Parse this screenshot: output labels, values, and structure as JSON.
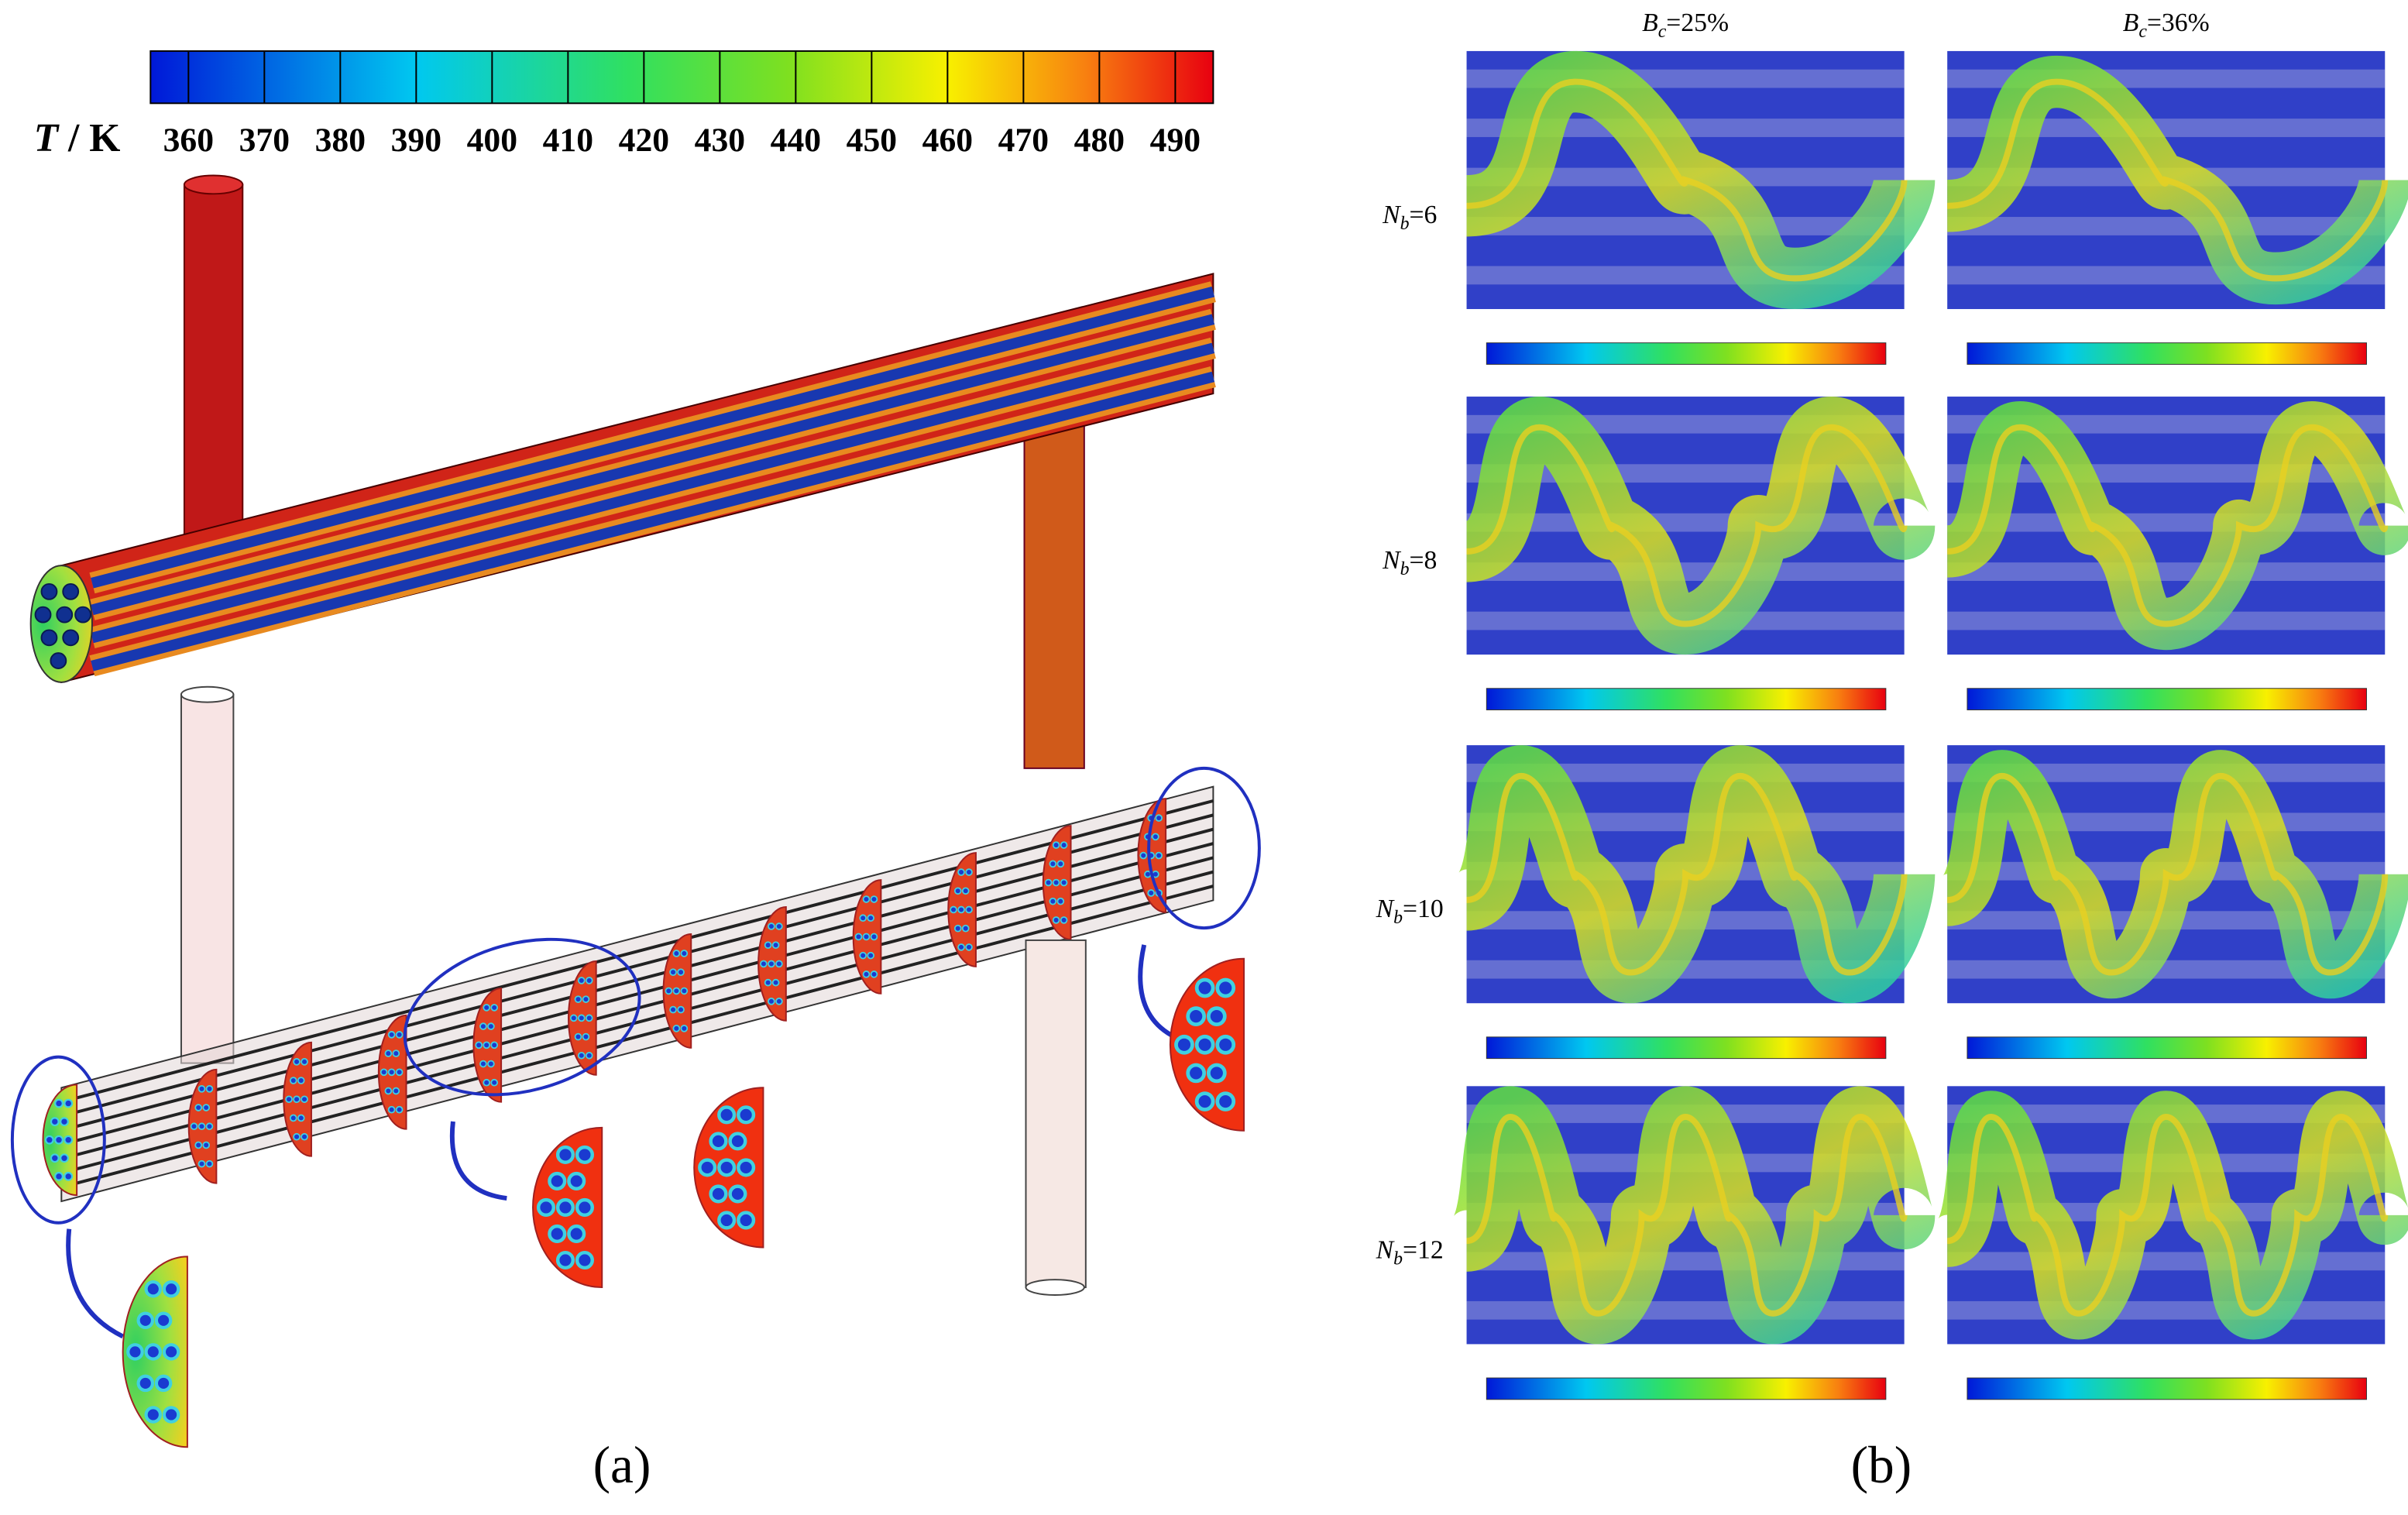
{
  "colorbar": {
    "label_symbol": "T",
    "label_unit": " / K",
    "range": [
      355,
      495
    ],
    "ticks": [
      360,
      370,
      380,
      390,
      400,
      410,
      420,
      430,
      440,
      450,
      460,
      470,
      480,
      490
    ]
  },
  "panel_a": {
    "label": "(a)"
  },
  "panel_b": {
    "label": "(b)",
    "columns": [
      {
        "var": "B",
        "sub": "c",
        "value": "=25%"
      },
      {
        "var": "B",
        "sub": "c",
        "value": "=36%"
      }
    ],
    "rows": [
      {
        "var": "N",
        "sub": "b",
        "value": "=6"
      },
      {
        "var": "N",
        "sub": "b",
        "value": "=8"
      },
      {
        "var": "N",
        "sub": "b",
        "value": "=10"
      },
      {
        "var": "N",
        "sub": "b",
        "value": "=12"
      }
    ]
  }
}
